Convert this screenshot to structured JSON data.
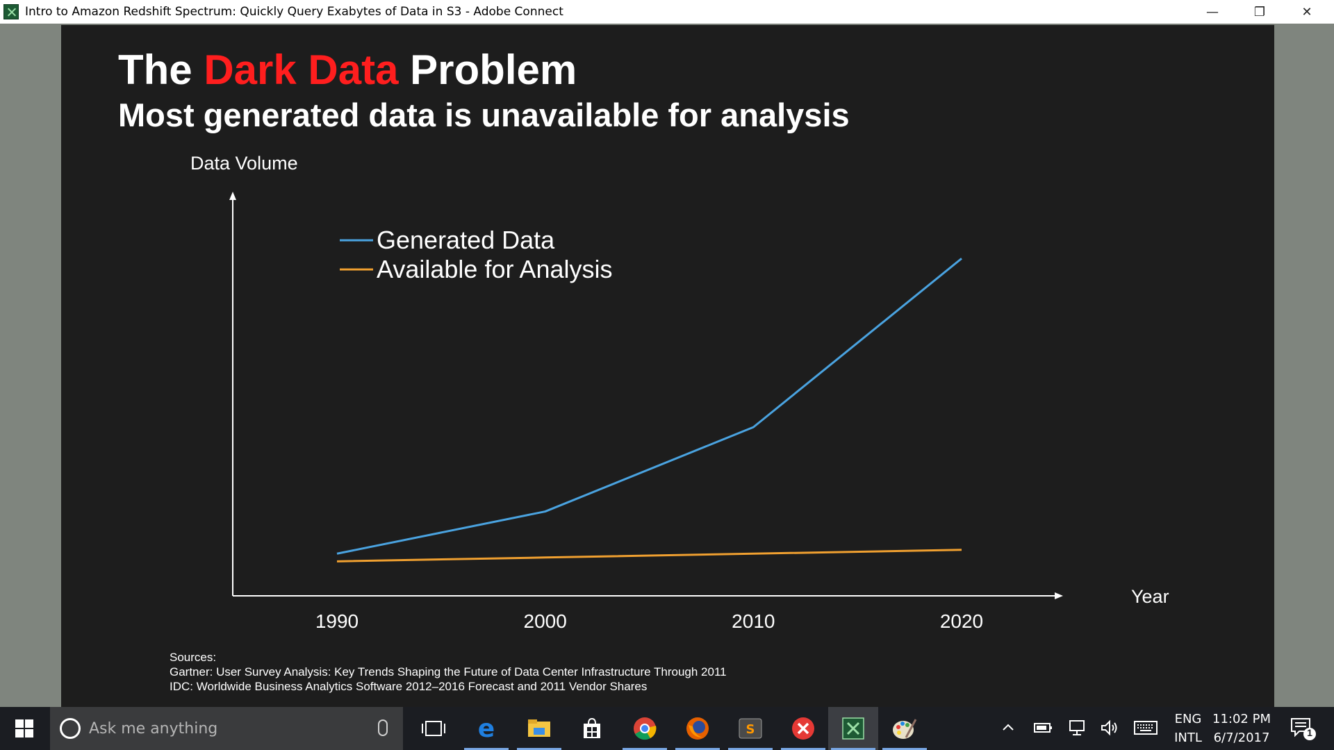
{
  "window": {
    "title": "Intro to Amazon Redshift Spectrum: Quickly Query Exabytes of Data in S3 - Adobe Connect",
    "minimize_glyph": "—",
    "restore_glyph": "❐",
    "close_glyph": "✕"
  },
  "slide": {
    "title_prefix": "The ",
    "title_accent": "Dark Data",
    "title_suffix": " Problem",
    "subtitle": "Most generated data is unavailable for analysis",
    "accent_color": "#ff1e1e",
    "sources": {
      "heading": "Sources:",
      "lines": [
        "Gartner: User Survey Analysis: Key Trends Shaping the Future of Data Center Infrastructure Through 2011",
        "IDC: Worldwide Business Analytics Software 2012–2016 Forecast and 2011 Vendor Shares"
      ]
    }
  },
  "chart_data": {
    "type": "line",
    "title": "",
    "ylabel": "Data Volume",
    "xlabel": "Year",
    "x": [
      1990,
      2000,
      2010,
      2020
    ],
    "xticks": [
      "1990",
      "2000",
      "2010",
      "2020"
    ],
    "ylim": [
      0,
      100
    ],
    "grid": false,
    "legend_position": "top-left",
    "series": [
      {
        "name": "Generated Data",
        "color": "#4aa3e0",
        "values": [
          11,
          22,
          44,
          88
        ]
      },
      {
        "name": "Available for Analysis",
        "color": "#f0a030",
        "values": [
          9,
          10,
          11,
          12
        ]
      }
    ]
  },
  "taskbar": {
    "search_placeholder": "Ask me anything",
    "apps": [
      {
        "icon": "task-view-icon"
      },
      {
        "icon": "edge-icon"
      },
      {
        "icon": "file-explorer-icon"
      },
      {
        "icon": "store-icon"
      },
      {
        "icon": "chrome-icon"
      },
      {
        "icon": "firefox-icon"
      },
      {
        "icon": "sublime-text-icon"
      },
      {
        "icon": "red-x-app-icon"
      },
      {
        "icon": "adobe-connect-icon"
      },
      {
        "icon": "paint-icon"
      }
    ],
    "tray": {
      "lang_top": "ENG",
      "lang_bottom": "INTL",
      "time": "11:02 PM",
      "date": "6/7/2017",
      "notification_count": "1"
    }
  }
}
